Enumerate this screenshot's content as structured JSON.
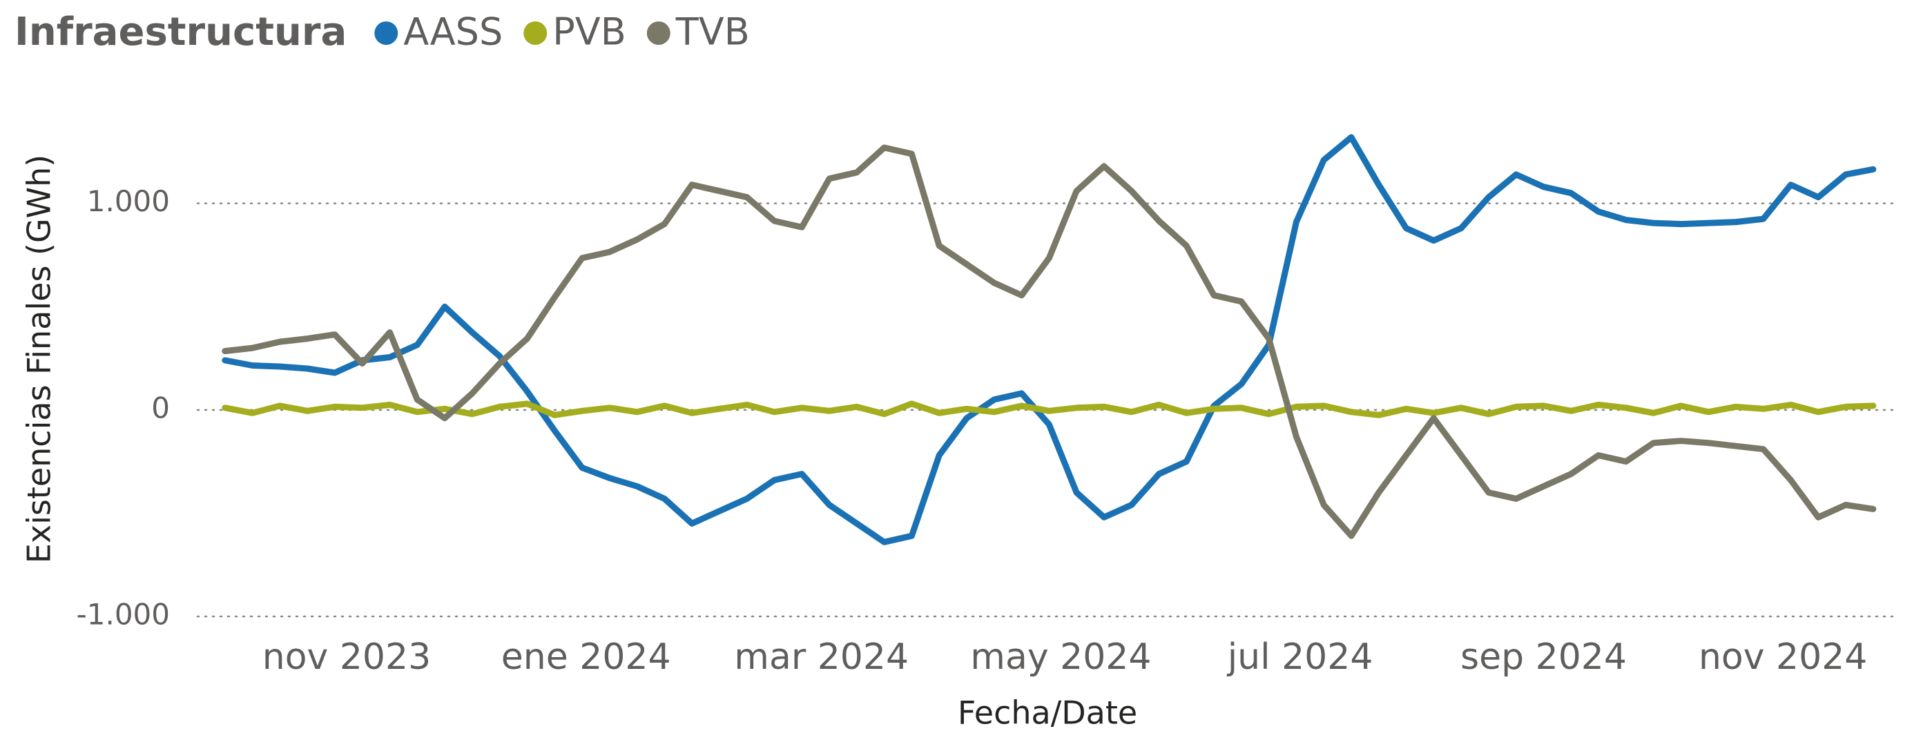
{
  "chart_data": {
    "type": "line",
    "legend_title": "Infraestructura",
    "ylabel": "Existencias Finales (GWh)",
    "xlabel": "Fecha/Date",
    "x": [
      "2023-10-01",
      "2023-10-08",
      "2023-10-15",
      "2023-10-22",
      "2023-10-29",
      "2023-11-05",
      "2023-11-12",
      "2023-11-19",
      "2023-11-26",
      "2023-12-03",
      "2023-12-10",
      "2023-12-17",
      "2023-12-24",
      "2023-12-31",
      "2024-01-07",
      "2024-01-14",
      "2024-01-21",
      "2024-01-28",
      "2024-02-04",
      "2024-02-11",
      "2024-02-18",
      "2024-02-25",
      "2024-03-03",
      "2024-03-10",
      "2024-03-17",
      "2024-03-24",
      "2024-03-31",
      "2024-04-07",
      "2024-04-14",
      "2024-04-21",
      "2024-04-28",
      "2024-05-05",
      "2024-05-12",
      "2024-05-19",
      "2024-05-26",
      "2024-06-02",
      "2024-06-09",
      "2024-06-16",
      "2024-06-23",
      "2024-06-30",
      "2024-07-07",
      "2024-07-14",
      "2024-07-21",
      "2024-07-28",
      "2024-08-04",
      "2024-08-11",
      "2024-08-18",
      "2024-08-25",
      "2024-09-01",
      "2024-09-08",
      "2024-09-15",
      "2024-09-22",
      "2024-09-29",
      "2024-10-06",
      "2024-10-13",
      "2024-10-20",
      "2024-10-27",
      "2024-11-03",
      "2024-11-10",
      "2024-11-17",
      "2024-11-24"
    ],
    "series": [
      {
        "name": "AASS",
        "color": "#1a72b5",
        "values": [
          240,
          215,
          210,
          200,
          180,
          240,
          255,
          315,
          500,
          375,
          260,
          90,
          -100,
          -280,
          -330,
          -370,
          -430,
          -550,
          -490,
          -430,
          -340,
          -310,
          -460,
          -550,
          -640,
          -610,
          -220,
          -40,
          50,
          80,
          -70,
          -400,
          -520,
          -460,
          -310,
          -250,
          20,
          125,
          315,
          910,
          1210,
          1320,
          1090,
          880,
          820,
          880,
          1030,
          1140,
          1080,
          1050,
          960,
          920,
          905,
          900,
          905,
          910,
          925,
          1090,
          1030,
          1140,
          1165
        ]
      },
      {
        "name": "PVB",
        "color": "#a4ad1d",
        "values": [
          10,
          -15,
          20,
          -5,
          15,
          10,
          25,
          -10,
          5,
          -20,
          15,
          30,
          -25,
          -5,
          10,
          -10,
          20,
          -15,
          5,
          25,
          -10,
          10,
          -5,
          15,
          -20,
          30,
          -15,
          5,
          -10,
          20,
          -5,
          10,
          15,
          -10,
          25,
          -15,
          5,
          10,
          -20,
          15,
          20,
          -10,
          -25,
          5,
          -15,
          10,
          -20,
          15,
          20,
          -5,
          25,
          10,
          -15,
          20,
          -10,
          15,
          5,
          25,
          -10,
          15,
          20
        ]
      },
      {
        "name": "TVB",
        "color": "#7a7967",
        "values": [
          285,
          300,
          330,
          345,
          365,
          225,
          375,
          50,
          -40,
          80,
          225,
          345,
          545,
          735,
          765,
          825,
          900,
          1090,
          1060,
          1030,
          915,
          885,
          1120,
          1150,
          1270,
          1240,
          795,
          705,
          615,
          555,
          735,
          1060,
          1180,
          1060,
          915,
          795,
          555,
          525,
          345,
          -130,
          -460,
          -610,
          -400,
          -220,
          -40,
          -220,
          -400,
          -430,
          -370,
          -310,
          -220,
          -250,
          -160,
          -150,
          -160,
          -175,
          -190,
          -340,
          -520,
          -460,
          -480
        ]
      }
    ],
    "xlim": [
      "2023-09-24",
      "2024-11-30"
    ],
    "xticks": [
      {
        "value": "2023-11-01",
        "label": "nov 2023"
      },
      {
        "value": "2024-01-01",
        "label": "ene 2024"
      },
      {
        "value": "2024-03-01",
        "label": "mar 2024"
      },
      {
        "value": "2024-05-01",
        "label": "may 2024"
      },
      {
        "value": "2024-07-01",
        "label": "jul 2024"
      },
      {
        "value": "2024-09-01",
        "label": "sep 2024"
      },
      {
        "value": "2024-11-01",
        "label": "nov 2024"
      }
    ],
    "ylim": [
      -1000,
      1400
    ],
    "yticks": [
      {
        "value": -1000,
        "label": "-1.000"
      },
      0,
      {
        "value": 1000,
        "label": "1.000"
      }
    ],
    "grid": true,
    "legend": "top-left"
  }
}
